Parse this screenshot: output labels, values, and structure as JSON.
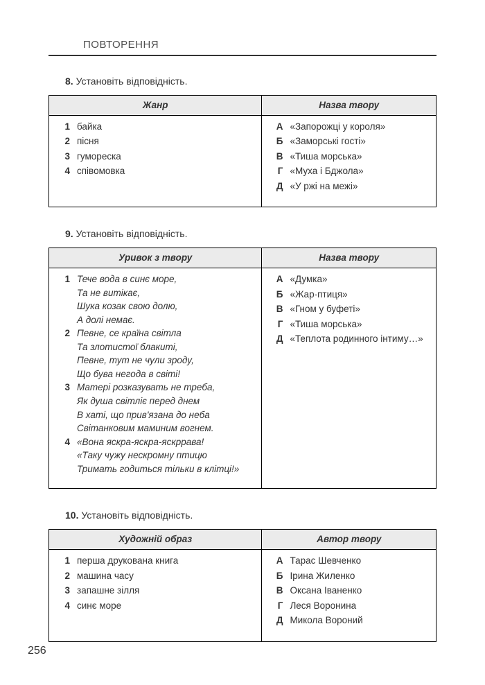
{
  "header": {
    "title": "ПОВТОРЕННЯ"
  },
  "page_number": "256",
  "ex8": {
    "num": "8.",
    "prompt": "Установіть відповідність.",
    "headers": {
      "left": "Жанр",
      "right": "Назва твору"
    },
    "left": [
      {
        "k": "1",
        "t": "байка"
      },
      {
        "k": "2",
        "t": "пісня"
      },
      {
        "k": "3",
        "t": "гумореска"
      },
      {
        "k": "4",
        "t": "співомовка"
      }
    ],
    "right": [
      {
        "k": "А",
        "t": "«Запорожці у короля»"
      },
      {
        "k": "Б",
        "t": "«Заморські гості»"
      },
      {
        "k": "В",
        "t": "«Тиша морська»"
      },
      {
        "k": "Г",
        "t": "«Муха і Бджола»"
      },
      {
        "k": "Д",
        "t": "«У ржі на межі»"
      }
    ]
  },
  "ex9": {
    "num": "9.",
    "prompt": "Установіть відповідність.",
    "headers": {
      "left": "Уривок з твору",
      "right": "Назва твору"
    },
    "left": [
      {
        "k": "1",
        "lines": [
          "Тече вода в синє море,",
          "Та не витікає,",
          "Шука козак свою долю,",
          "А долі немає."
        ]
      },
      {
        "k": "2",
        "lines": [
          "Певне, се країна світла",
          "Та злотистої блакиті,",
          "Певне, тут не чули зроду,",
          "Що бува негода в світі!"
        ]
      },
      {
        "k": "3",
        "lines": [
          "Матері розказувать не треба,",
          "Як душа світліє перед днем",
          "В хаті, що прив'язана до неба",
          "Світанковим маминим вогнем."
        ]
      },
      {
        "k": "4",
        "lines": [
          "«Вона яскра-яскра-яскррава!",
          "«Таку чужу нескромну птицю",
          "Тримать годиться тільки в клітці!»"
        ]
      }
    ],
    "right": [
      {
        "k": "А",
        "t": "«Думка»"
      },
      {
        "k": "Б",
        "t": "«Жар-птиця»"
      },
      {
        "k": "В",
        "t": "«Гном у буфеті»"
      },
      {
        "k": "Г",
        "t": "«Тиша морська»"
      },
      {
        "k": "Д",
        "t": "«Теплота родинного інтиму…»"
      }
    ]
  },
  "ex10": {
    "num": "10.",
    "prompt": "Установіть відповідність.",
    "headers": {
      "left": "Художній образ",
      "right": "Автор твору"
    },
    "left": [
      {
        "k": "1",
        "t": "перша друкована книга"
      },
      {
        "k": "2",
        "t": "машина часу"
      },
      {
        "k": "3",
        "t": "запашне зілля"
      },
      {
        "k": "4",
        "t": "синє море"
      }
    ],
    "right": [
      {
        "k": "А",
        "t": "Тарас Шевченко"
      },
      {
        "k": "Б",
        "t": "Ірина Жиленко"
      },
      {
        "k": "В",
        "t": "Оксана Іваненко"
      },
      {
        "k": "Г",
        "t": "Леся Воронина"
      },
      {
        "k": "Д",
        "t": "Микола Вороний"
      }
    ]
  }
}
